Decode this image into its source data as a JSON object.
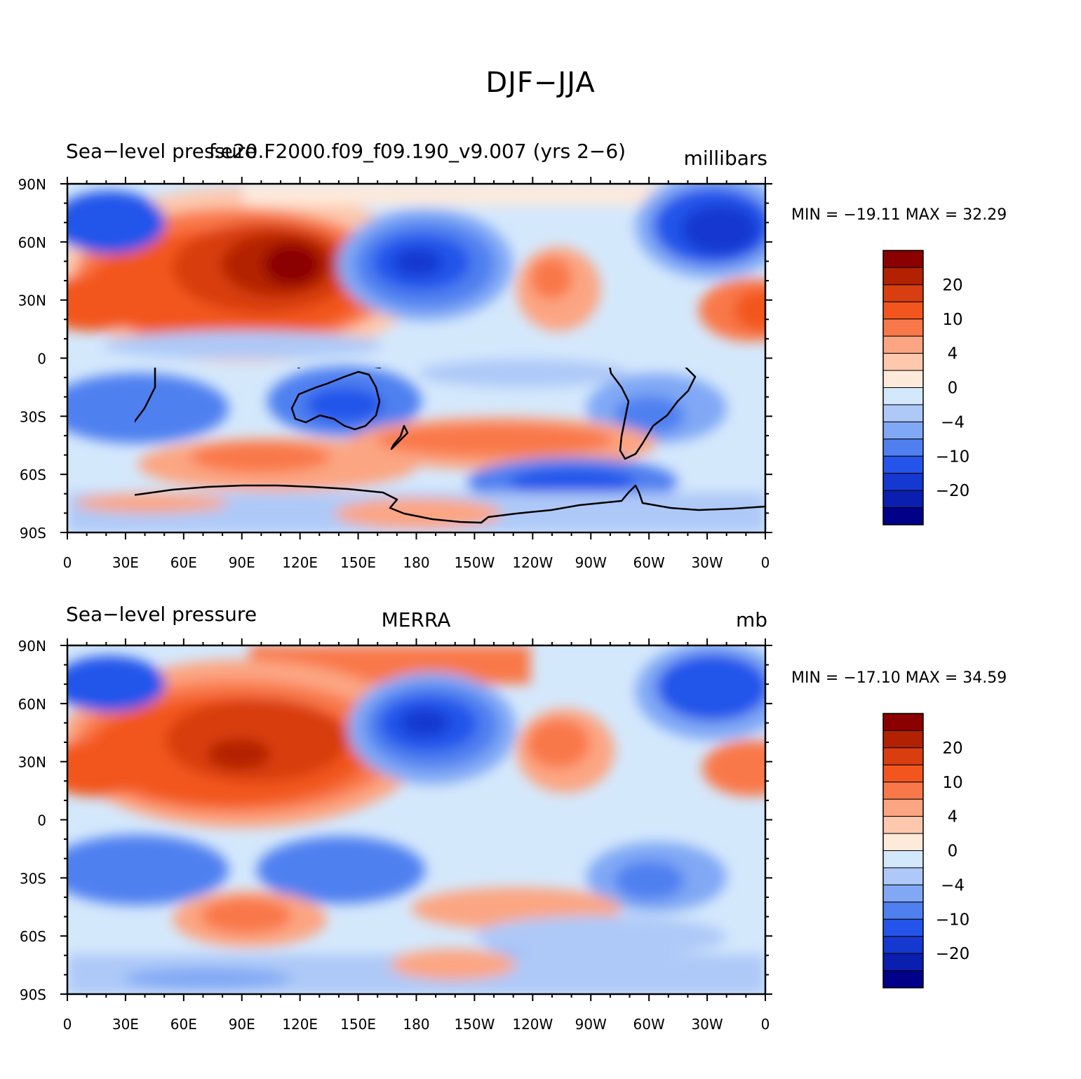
{
  "figure": {
    "title": "DJF−JJA"
  },
  "panels": [
    {
      "left_title": "Sea−level pressure",
      "center_title": "f.e20.F2000.f09_f09.190_v9.007 (yrs 2−6)",
      "right_title": "millibars",
      "stats": "MIN = −19.11  MAX =   32.29",
      "colorbar_labels": [
        "20",
        "10",
        "4",
        "0",
        "−4",
        "−10",
        "−20"
      ]
    },
    {
      "left_title": "Sea−level pressure",
      "center_title": "MERRA",
      "right_title": "mb",
      "stats": "MIN = −17.10  MAX =   34.59",
      "colorbar_labels": [
        "20",
        "10",
        "4",
        "0",
        "−4",
        "−10",
        "−20"
      ]
    }
  ],
  "axes": {
    "lat_labels": [
      "90N",
      "60N",
      "30N",
      "0",
      "30S",
      "60S",
      "90S"
    ],
    "lon_labels": [
      "0",
      "30E",
      "60E",
      "90E",
      "120E",
      "150E",
      "180",
      "150W",
      "120W",
      "90W",
      "60W",
      "30W",
      "0"
    ]
  },
  "colorbar": {
    "colors_top_to_bottom": [
      "#8b0000",
      "#b22200",
      "#d83e10",
      "#f2561e",
      "#f9784a",
      "#fca582",
      "#fdc8ad",
      "#feeadb",
      "#d4e8fc",
      "#aec9f8",
      "#80a8f5",
      "#5080f0",
      "#2454ea",
      "#1438d0",
      "#0a1eb0",
      "#000088"
    ]
  },
  "map_colors": {
    "ocean_neutral": "#d4e8fc",
    "warm": [
      "#feeadb",
      "#fdc8ad",
      "#fca582",
      "#f9784a",
      "#f2561e",
      "#d83e10",
      "#b22200",
      "#8b0000"
    ],
    "cool": [
      "#d4e8fc",
      "#aec9f8",
      "#80a8f5",
      "#5080f0",
      "#2454ea",
      "#1438d0"
    ]
  }
}
